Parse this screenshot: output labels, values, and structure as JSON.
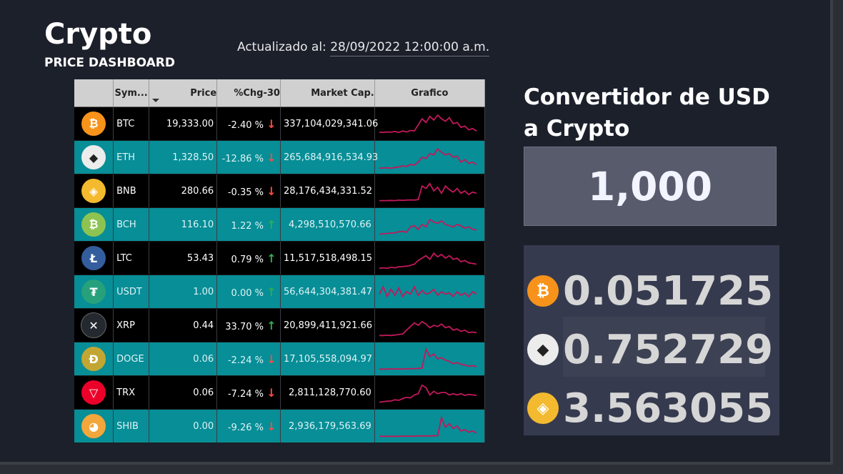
{
  "header": {
    "title": "Crypto",
    "subtitle": "PRICE DASHBOARD",
    "updated_label": "Actualizado al:",
    "updated_value": "28/09/2022 12:00:00 a.m."
  },
  "table": {
    "columns": [
      "",
      "Sym...",
      "Price",
      "%Chg-30",
      "Market Cap.",
      "Grafico"
    ],
    "rows": [
      {
        "symbol": "BTC",
        "price": "19,333.00",
        "chg": "-2.40 %",
        "dir": "down",
        "cap": "337,104,029,341.06",
        "icon": "bitcoin-icon",
        "color": "#f7931a",
        "glyph": "₿"
      },
      {
        "symbol": "ETH",
        "price": "1,328.50",
        "chg": "-12.86 %",
        "dir": "down",
        "cap": "265,684,916,534.93",
        "icon": "ethereum-icon",
        "color": "#ececec",
        "glyph": "◆"
      },
      {
        "symbol": "BNB",
        "price": "280.66",
        "chg": "-0.35 %",
        "dir": "down",
        "cap": "28,176,434,331.52",
        "icon": "binance-icon",
        "color": "#f3ba2f",
        "glyph": "◈"
      },
      {
        "symbol": "BCH",
        "price": "116.10",
        "chg": "1.22 %",
        "dir": "up",
        "cap": "4,298,510,570.66",
        "icon": "bitcoin-cash-icon",
        "color": "#8dc351",
        "glyph": "₿"
      },
      {
        "symbol": "LTC",
        "price": "53.43",
        "chg": "0.79 %",
        "dir": "up",
        "cap": "11,517,518,498.15",
        "icon": "litecoin-icon",
        "color": "#345d9d",
        "glyph": "Ł"
      },
      {
        "symbol": "USDT",
        "price": "1.00",
        "chg": "0.00 %",
        "dir": "up",
        "cap": "56,644,304,381.47",
        "icon": "tether-icon",
        "color": "#26a17b",
        "glyph": "₮"
      },
      {
        "symbol": "XRP",
        "price": "0.44",
        "chg": "33.70 %",
        "dir": "up",
        "cap": "20,899,411,921.66",
        "icon": "xrp-icon",
        "color": "#23292f",
        "glyph": "✕"
      },
      {
        "symbol": "DOGE",
        "price": "0.06",
        "chg": "-2.24 %",
        "dir": "down",
        "cap": "17,105,558,094.97",
        "icon": "dogecoin-icon",
        "color": "#c2a633",
        "glyph": "Ð"
      },
      {
        "symbol": "TRX",
        "price": "0.06",
        "chg": "-7.24 %",
        "dir": "down",
        "cap": "2,811,128,770.60",
        "icon": "tron-icon",
        "color": "#eb0029",
        "glyph": "▽"
      },
      {
        "symbol": "SHIB",
        "price": "0.00",
        "chg": "-9.26 %",
        "dir": "down",
        "cap": "2,936,179,563.69",
        "icon": "shiba-inu-icon",
        "color": "#f3a63b",
        "glyph": "◕"
      }
    ],
    "sparkline_color": "#c2185b",
    "row_colors": {
      "dark": "#000000",
      "teal": "#078e97"
    }
  },
  "converter": {
    "title": "Convertidor de USD a Crypto",
    "amount": "1,000",
    "results": [
      {
        "value": "0.051725",
        "icon": "bitcoin-icon",
        "color": "#f7931a"
      },
      {
        "value": "0.752729",
        "icon": "ethereum-icon",
        "color": "#ececec"
      },
      {
        "value": "3.563055",
        "icon": "binance-icon",
        "color": "#f3ba2f"
      }
    ]
  }
}
